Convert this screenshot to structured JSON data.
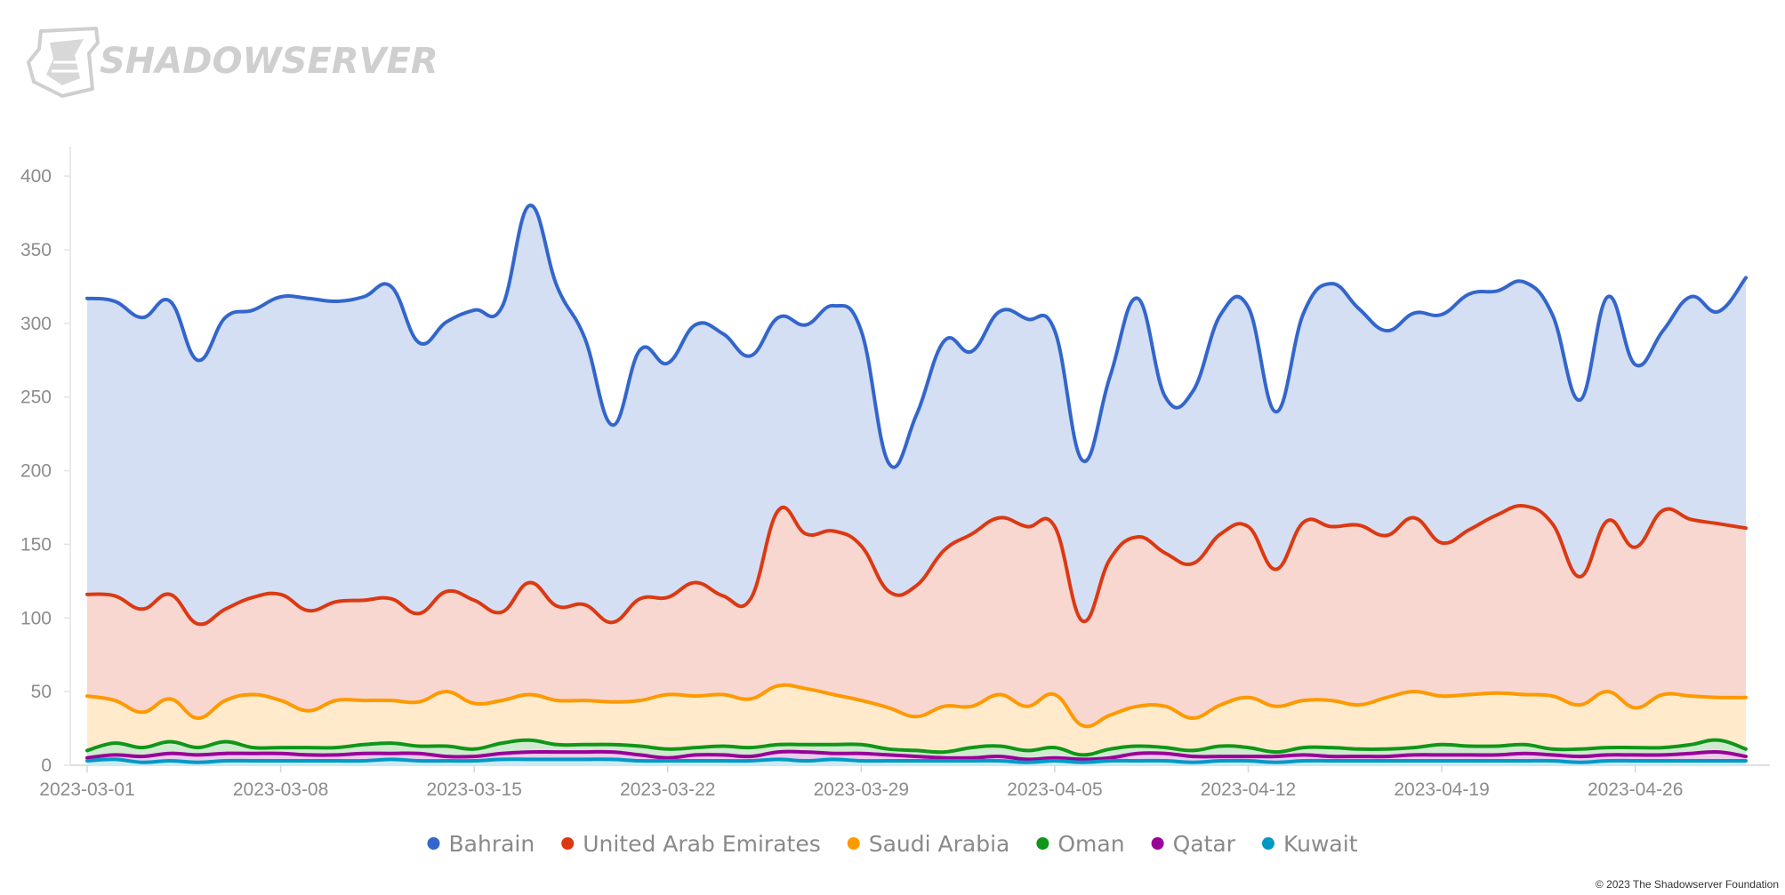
{
  "brand": {
    "name": "SHADOWSERVER",
    "logo_icon": "shadowserver-logo-icon"
  },
  "copyright": "© 2023 The Shadowserver Foundation",
  "chart_data": {
    "type": "area",
    "stacked": false,
    "curve": "smooth",
    "title": "",
    "xlabel": "",
    "ylabel": "",
    "ylim": [
      0,
      420
    ],
    "yticks": [
      0,
      50,
      100,
      150,
      200,
      250,
      300,
      350,
      400
    ],
    "x": [
      "2023-03-01",
      "2023-03-02",
      "2023-03-03",
      "2023-03-04",
      "2023-03-05",
      "2023-03-06",
      "2023-03-07",
      "2023-03-08",
      "2023-03-09",
      "2023-03-10",
      "2023-03-11",
      "2023-03-12",
      "2023-03-13",
      "2023-03-14",
      "2023-03-15",
      "2023-03-16",
      "2023-03-17",
      "2023-03-18",
      "2023-03-19",
      "2023-03-20",
      "2023-03-21",
      "2023-03-22",
      "2023-03-23",
      "2023-03-24",
      "2023-03-25",
      "2023-03-26",
      "2023-03-27",
      "2023-03-28",
      "2023-03-29",
      "2023-03-30",
      "2023-03-31",
      "2023-04-01",
      "2023-04-02",
      "2023-04-03",
      "2023-04-04",
      "2023-04-05",
      "2023-04-06",
      "2023-04-07",
      "2023-04-08",
      "2023-04-09",
      "2023-04-10",
      "2023-04-11",
      "2023-04-12",
      "2023-04-13",
      "2023-04-14",
      "2023-04-15",
      "2023-04-16",
      "2023-04-17",
      "2023-04-18",
      "2023-04-19",
      "2023-04-20",
      "2023-04-21",
      "2023-04-22",
      "2023-04-23",
      "2023-04-24",
      "2023-04-25",
      "2023-04-26",
      "2023-04-27",
      "2023-04-28",
      "2023-04-29",
      "2023-04-30"
    ],
    "xtick_labels": [
      "2023-03-01",
      "2023-03-08",
      "2023-03-15",
      "2023-03-22",
      "2023-03-29",
      "2023-04-05",
      "2023-04-12",
      "2023-04-19",
      "2023-04-26"
    ],
    "grid": false,
    "legend_position": "bottom-center",
    "series": [
      {
        "name": "Bahrain",
        "color": "#3366cc",
        "fill": "#d5dff3",
        "values": [
          317,
          315,
          304,
          315,
          275,
          304,
          309,
          318,
          317,
          315,
          318,
          325,
          287,
          301,
          309,
          311,
          380,
          325,
          290,
          231,
          282,
          273,
          299,
          293,
          278,
          304,
          299,
          312,
          295,
          205,
          238,
          288,
          281,
          308,
          303,
          295,
          207,
          264,
          317,
          250,
          254,
          306,
          311,
          240,
          307,
          327,
          310,
          295,
          307,
          306,
          320,
          322,
          328,
          306,
          248,
          318,
          272,
          295,
          318,
          308,
          331
        ]
      },
      {
        "name": "United Arab Emirates",
        "color": "#dc3912",
        "fill": "#f7d7d0",
        "values": [
          116,
          115,
          106,
          116,
          96,
          106,
          114,
          116,
          105,
          111,
          112,
          113,
          103,
          118,
          112,
          104,
          124,
          108,
          109,
          97,
          113,
          114,
          124,
          115,
          113,
          173,
          157,
          159,
          149,
          118,
          122,
          146,
          157,
          168,
          162,
          162,
          98,
          140,
          155,
          144,
          137,
          157,
          162,
          133,
          165,
          162,
          163,
          156,
          168,
          151,
          160,
          170,
          176,
          164,
          128,
          166,
          148,
          173,
          167,
          164,
          161
        ]
      },
      {
        "name": "Saudi Arabia",
        "color": "#ff9900",
        "fill": "#ffebcc",
        "values": [
          47,
          44,
          36,
          45,
          32,
          44,
          48,
          44,
          37,
          44,
          44,
          44,
          43,
          50,
          42,
          44,
          48,
          44,
          44,
          43,
          44,
          48,
          47,
          48,
          45,
          54,
          52,
          48,
          44,
          39,
          33,
          40,
          40,
          48,
          40,
          48,
          27,
          34,
          40,
          40,
          32,
          41,
          46,
          40,
          44,
          44,
          41,
          46,
          50,
          47,
          48,
          49,
          48,
          47,
          41,
          50,
          39,
          48,
          47,
          46,
          46
        ]
      },
      {
        "name": "Oman",
        "color": "#109618",
        "fill": "#cfeacf",
        "values": [
          10,
          15,
          12,
          16,
          12,
          16,
          12,
          12,
          12,
          12,
          14,
          15,
          13,
          13,
          11,
          15,
          17,
          14,
          14,
          14,
          13,
          11,
          12,
          13,
          12,
          14,
          14,
          14,
          14,
          11,
          10,
          9,
          12,
          13,
          10,
          12,
          7,
          11,
          13,
          12,
          10,
          13,
          12,
          9,
          12,
          12,
          11,
          11,
          12,
          14,
          13,
          13,
          14,
          11,
          11,
          12,
          12,
          12,
          14,
          17,
          11
        ]
      },
      {
        "name": "Qatar",
        "color": "#990099",
        "fill": "#ebcceb",
        "values": [
          5,
          7,
          6,
          8,
          7,
          8,
          8,
          8,
          7,
          7,
          8,
          8,
          8,
          6,
          6,
          8,
          9,
          9,
          9,
          9,
          7,
          5,
          7,
          7,
          6,
          9,
          9,
          8,
          8,
          7,
          6,
          5,
          5,
          6,
          4,
          5,
          4,
          5,
          8,
          8,
          6,
          6,
          6,
          6,
          7,
          6,
          6,
          6,
          7,
          7,
          7,
          7,
          8,
          7,
          6,
          7,
          7,
          7,
          8,
          9,
          6
        ]
      },
      {
        "name": "Kuwait",
        "color": "#0099c6",
        "fill": "#cceaf4",
        "values": [
          3,
          4,
          2,
          3,
          2,
          3,
          3,
          3,
          3,
          3,
          3,
          4,
          3,
          3,
          3,
          4,
          4,
          4,
          4,
          4,
          3,
          3,
          3,
          3,
          3,
          4,
          3,
          4,
          3,
          3,
          3,
          3,
          3,
          3,
          2,
          3,
          2,
          3,
          3,
          3,
          2,
          3,
          3,
          2,
          3,
          3,
          3,
          3,
          3,
          3,
          3,
          3,
          3,
          3,
          2,
          3,
          3,
          3,
          3,
          3,
          3
        ]
      }
    ]
  }
}
